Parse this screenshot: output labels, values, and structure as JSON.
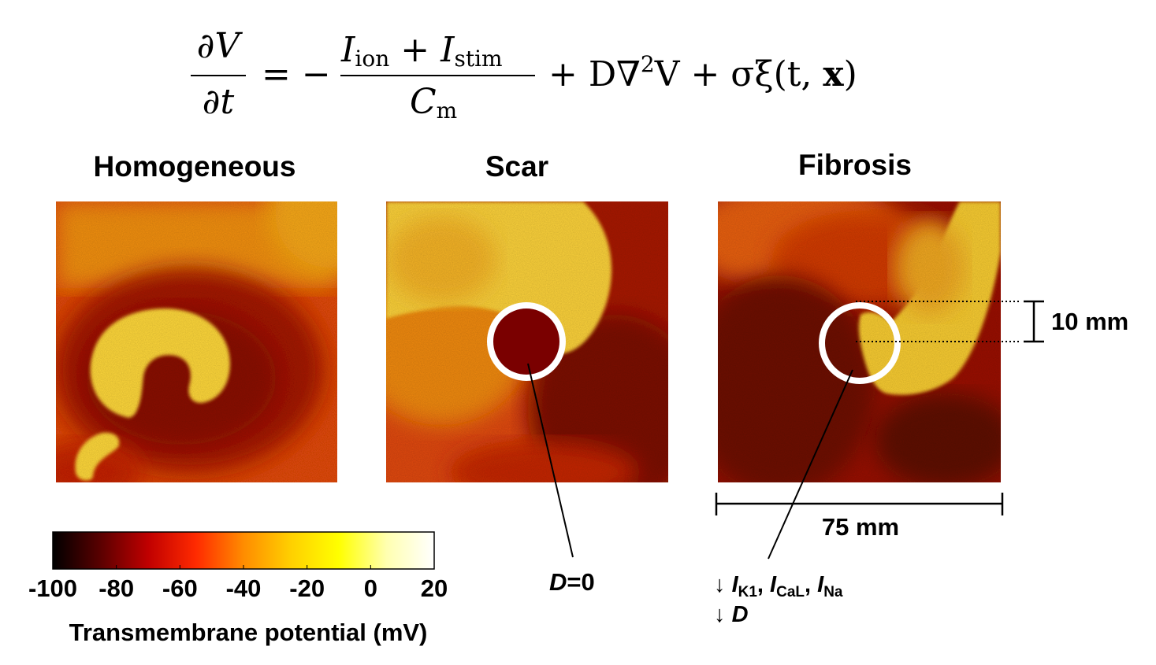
{
  "equation": {
    "lhs_num": "∂V",
    "lhs_den": "∂t",
    "equals": "= −",
    "frac_num_a": "I",
    "frac_num_a_sub": "ion",
    "frac_num_plus": " + ",
    "frac_num_b": "I",
    "frac_num_b_sub": "stim",
    "frac_den": "C",
    "frac_den_sub": "m",
    "rest_a": "+ D∇",
    "rest_sup": "2",
    "rest_b": "V + σξ(t, ",
    "rest_x": "x",
    "rest_close": ")"
  },
  "panels": [
    {
      "title": "Homogeneous"
    },
    {
      "title": "Scar"
    },
    {
      "title": "Fibrosis"
    }
  ],
  "annotations": {
    "scar_label_italic": "D",
    "scar_label_rest": "=0",
    "fibrosis_line1_arrow": "↓ ",
    "ik1": "I",
    "ik1_sub": "K1",
    "sep1": ", ",
    "ical": "I",
    "ical_sub": "CaL",
    "sep2": ", ",
    "ina": "I",
    "ina_sub": "Na",
    "fibrosis_line2_arrow": "↓ ",
    "fibrosis_line2_d": "D",
    "scale_width": "75 mm",
    "scale_height": "10 mm"
  },
  "colorbar": {
    "label": "Transmembrane potential (mV)",
    "ticks": [
      "-100",
      "-80",
      "-60",
      "-40",
      "-20",
      "0",
      "20"
    ],
    "stops": [
      "#000000",
      "#5a0000",
      "#c00000",
      "#ff2a00",
      "#ff8c00",
      "#ffd000",
      "#ffff00",
      "#ffffb0",
      "#ffffff"
    ]
  },
  "colors": {
    "dark_red": "#7a0000",
    "mid_red": "#d83000",
    "orange": "#f28a10",
    "yellow": "#ffe040",
    "ring": "#ffffff"
  }
}
